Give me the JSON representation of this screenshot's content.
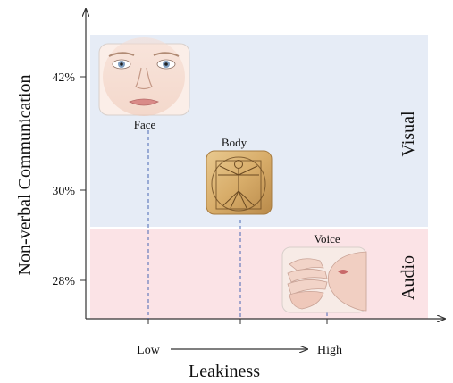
{
  "chart_data": {
    "type": "scatter",
    "title": "",
    "xlabel": "Leakiness",
    "ylabel": "Non-verbal Communication",
    "x_scale_labels": {
      "low": "Low",
      "high": "High"
    },
    "y_ticks": [
      "42%",
      "30%",
      "28%"
    ],
    "bands": [
      {
        "label": "Visual",
        "color": "#e6ecf6"
      },
      {
        "label": "Audio",
        "color": "#fbe3e6"
      }
    ],
    "points": [
      {
        "label": "Face",
        "x": "Low",
        "y": "42%",
        "band": "Visual",
        "image": "face"
      },
      {
        "label": "Body",
        "x": "Medium",
        "y": "30%",
        "band": "Visual",
        "image": "body"
      },
      {
        "label": "Voice",
        "x": "High",
        "y": "28%",
        "band": "Audio",
        "image": "voice"
      }
    ]
  }
}
